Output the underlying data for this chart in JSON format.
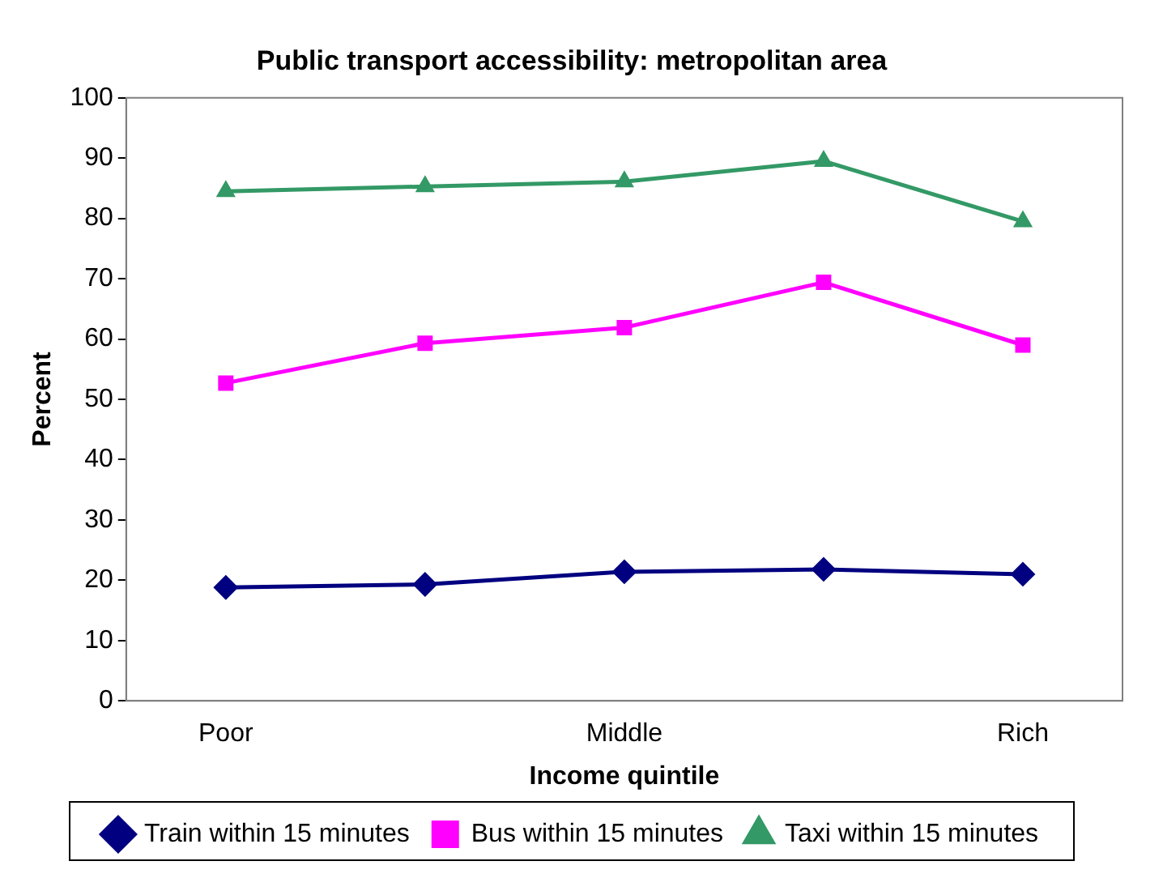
{
  "chart_data": {
    "type": "line",
    "title": "Public transport accessibility: metropolitan area",
    "xlabel": "Income quintile",
    "ylabel": "Percent",
    "categories": [
      "Poor",
      null,
      "Middle",
      null,
      "Rich"
    ],
    "series": [
      {
        "name": "Train within 15 minutes",
        "color": "#000080",
        "marker": "diamond",
        "values": [
          18.8,
          19.3,
          21.4,
          21.8,
          21.0
        ]
      },
      {
        "name": "Bus within 15 minutes",
        "color": "#ff00ff",
        "marker": "square",
        "values": [
          52.7,
          59.3,
          61.9,
          69.4,
          59.0
        ]
      },
      {
        "name": "Taxi within 15 minutes",
        "color": "#339966",
        "marker": "triangle",
        "values": [
          84.5,
          85.3,
          86.1,
          89.5,
          79.5
        ]
      }
    ],
    "ylim": [
      0,
      100
    ],
    "yticks": [
      0,
      10,
      20,
      30,
      40,
      50,
      60,
      70,
      80,
      90,
      100
    ],
    "grid": false,
    "legend": "bottom",
    "line_style": "solid"
  }
}
